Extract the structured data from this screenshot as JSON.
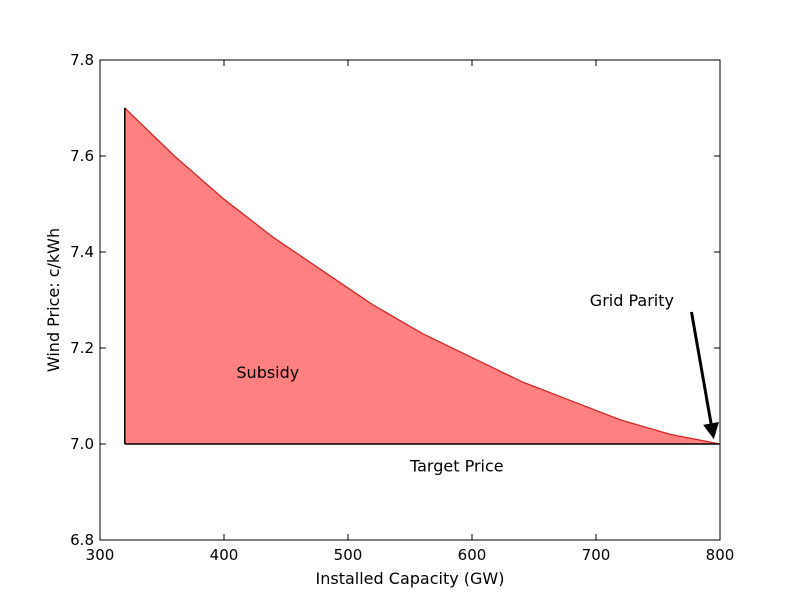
{
  "chart_data": {
    "type": "area",
    "title": "",
    "xlabel": "Installed Capacity (GW)",
    "ylabel": "Wind Price: c/kWh",
    "xlim": [
      300,
      800
    ],
    "ylim": [
      6.8,
      7.8
    ],
    "xticks": [
      300,
      400,
      500,
      600,
      700,
      800
    ],
    "yticks": [
      6.8,
      7.0,
      7.2,
      7.4,
      7.6,
      7.8
    ],
    "xtick_labels": [
      "300",
      "400",
      "500",
      "600",
      "700",
      "800"
    ],
    "ytick_labels": [
      "6.8",
      "7.0",
      "7.2",
      "7.4",
      "7.6",
      "7.8"
    ],
    "grid": false,
    "series": [
      {
        "role": "price-curve",
        "x": [
          320,
          360,
          400,
          440,
          480,
          520,
          560,
          600,
          640,
          680,
          720,
          760,
          800
        ],
        "y": [
          7.7,
          7.6,
          7.51,
          7.43,
          7.36,
          7.29,
          7.23,
          7.18,
          7.13,
          7.09,
          7.05,
          7.02,
          7.0
        ],
        "color": "#d62728",
        "fill": "#ff8080"
      }
    ],
    "target_price": 7.0,
    "annotations": {
      "subsidy": {
        "text": "Subsidy",
        "x": 410,
        "y": 7.15
      },
      "target": {
        "text": "Target Price",
        "x": 550,
        "y": 6.955
      },
      "grid_parity": {
        "text": "Grid Parity",
        "x": 695,
        "y": 7.3,
        "arrow_from": [
          777,
          7.275
        ],
        "arrow_to": [
          795,
          7.01
        ]
      }
    }
  }
}
